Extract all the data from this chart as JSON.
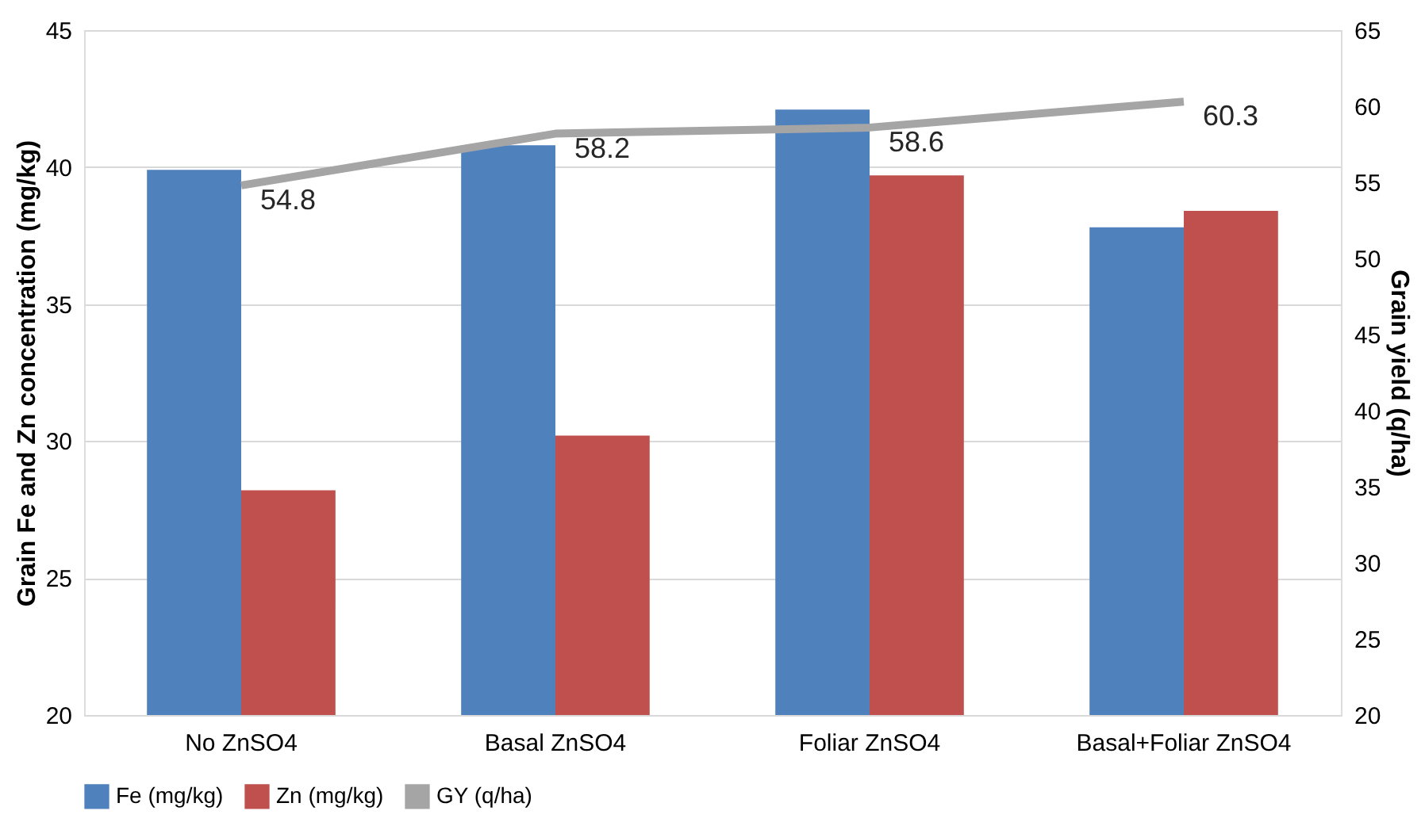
{
  "chart_data": {
    "type": "bar",
    "categories": [
      "No ZnSO4",
      "Basal ZnSO4",
      "Foliar ZnSO4",
      "Basal+Foliar ZnSO4"
    ],
    "ylabel": "Grain Fe and Zn concentration (mg/kg)",
    "y2label": "Grain yield (q/ha)",
    "ylim": [
      20,
      45
    ],
    "yticks": [
      20,
      25,
      30,
      35,
      40,
      45
    ],
    "y2lim": [
      20,
      65
    ],
    "y2ticks": [
      20,
      25,
      30,
      35,
      40,
      45,
      50,
      55,
      60,
      65
    ],
    "grid": "y",
    "legend": "bottom",
    "series": [
      {
        "name": "Fe (mg/kg)",
        "color": "#4f81bd",
        "values": [
          39.9,
          40.8,
          42.1,
          37.8
        ]
      },
      {
        "name": "Zn (mg/kg)",
        "color": "#c0504d",
        "values": [
          28.2,
          30.2,
          39.7,
          38.4
        ]
      },
      {
        "name": "GY (q/ha)",
        "color": "#a5a5a5",
        "type": "line",
        "axis": "y2",
        "marker": "none",
        "values": [
          54.8,
          58.2,
          58.6,
          60.3
        ],
        "value_labels": [
          "54.8",
          "58.2",
          "58.6",
          "60.3"
        ]
      }
    ]
  }
}
